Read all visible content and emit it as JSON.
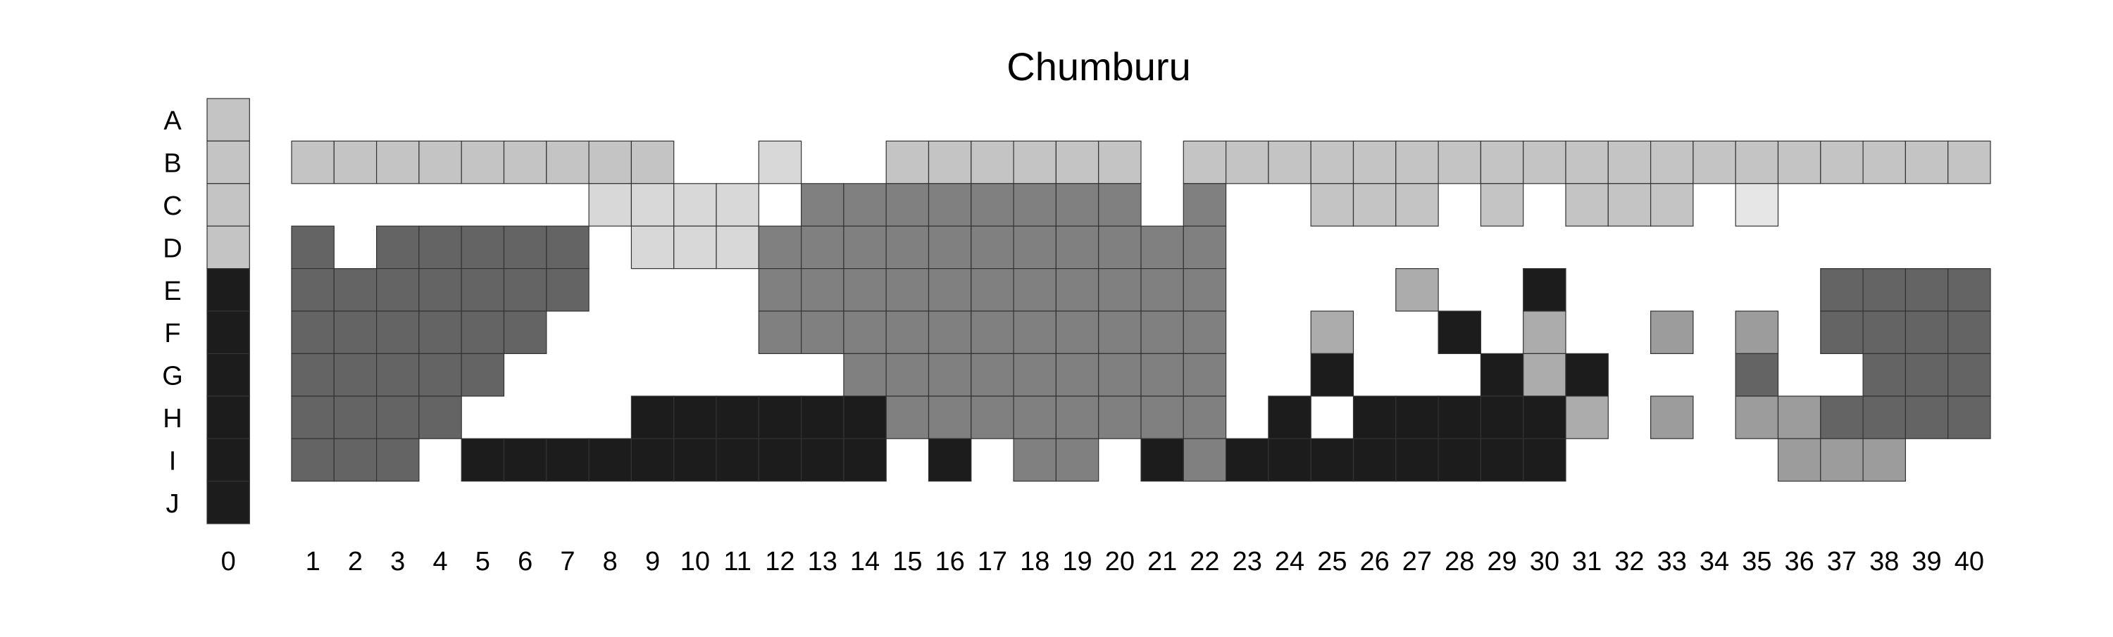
{
  "chart_data": {
    "type": "heatmap",
    "title": "Chumburu",
    "xlabel": "",
    "ylabel": "",
    "row_labels": [
      "A",
      "B",
      "C",
      "D",
      "E",
      "F",
      "G",
      "H",
      "I",
      "J"
    ],
    "column_labels": [
      "0",
      "1",
      "2",
      "3",
      "4",
      "5",
      "6",
      "7",
      "8",
      "9",
      "10",
      "11",
      "12",
      "13",
      "14",
      "15",
      "16",
      "17",
      "18",
      "19",
      "20",
      "21",
      "22",
      "23",
      "24",
      "25",
      "26",
      "27",
      "28",
      "29",
      "30",
      "31",
      "32",
      "33",
      "34",
      "35",
      "36",
      "37",
      "38",
      "39",
      "40"
    ],
    "legend": "none",
    "grid": false,
    "palette": {
      "0": "#c4c4c4",
      "1": "#d8d8d8",
      "2": "#e6e6e6",
      "3": "#acacac",
      "4": "#9c9c9c",
      "5": "#808080",
      "6": "#646464",
      "7": "#1c1c1c"
    },
    "cells": [
      {
        "row": "A",
        "cols": [
          0
        ],
        "shade": 0
      },
      {
        "row": "B",
        "cols": [
          0,
          1,
          2,
          3,
          4,
          5,
          6,
          7,
          8,
          9
        ],
        "shade": 0
      },
      {
        "row": "B",
        "cols": [
          12
        ],
        "shade": 1
      },
      {
        "row": "B",
        "cols": [
          15,
          16,
          17,
          18,
          19,
          20
        ],
        "shade": 0
      },
      {
        "row": "B",
        "cols": [
          22,
          23,
          24,
          25,
          26,
          27,
          28,
          29,
          30,
          31,
          32,
          33,
          34,
          35,
          36,
          37,
          38,
          39,
          40
        ],
        "shade": 0
      },
      {
        "row": "C",
        "cols": [
          0
        ],
        "shade": 0
      },
      {
        "row": "C",
        "cols": [
          8,
          9,
          10,
          11
        ],
        "shade": 1
      },
      {
        "row": "C",
        "cols": [
          13,
          14,
          15,
          16,
          17,
          18,
          19,
          20,
          22
        ],
        "shade": 5
      },
      {
        "row": "C",
        "cols": [
          25,
          26,
          27,
          29,
          31,
          32,
          33
        ],
        "shade": 0
      },
      {
        "row": "C",
        "cols": [
          35
        ],
        "shade": 2
      },
      {
        "row": "D",
        "cols": [
          0
        ],
        "shade": 0
      },
      {
        "row": "D",
        "cols": [
          1,
          3,
          4,
          5,
          6,
          7
        ],
        "shade": 6
      },
      {
        "row": "D",
        "cols": [
          9,
          10,
          11
        ],
        "shade": 1
      },
      {
        "row": "D",
        "cols": [
          12,
          13,
          14,
          15,
          16,
          17,
          18,
          19,
          20,
          21,
          22
        ],
        "shade": 5
      },
      {
        "row": "E",
        "cols": [
          0
        ],
        "shade": 7
      },
      {
        "row": "E",
        "cols": [
          1,
          2,
          3,
          4,
          5,
          6,
          7
        ],
        "shade": 6
      },
      {
        "row": "E",
        "cols": [
          12,
          13,
          14,
          15,
          16,
          17,
          18,
          19,
          20,
          21,
          22
        ],
        "shade": 5
      },
      {
        "row": "E",
        "cols": [
          27
        ],
        "shade": 3
      },
      {
        "row": "E",
        "cols": [
          30
        ],
        "shade": 7
      },
      {
        "row": "E",
        "cols": [
          37,
          38,
          39,
          40
        ],
        "shade": 6
      },
      {
        "row": "F",
        "cols": [
          0
        ],
        "shade": 7
      },
      {
        "row": "F",
        "cols": [
          1,
          2,
          3,
          4,
          5,
          6
        ],
        "shade": 6
      },
      {
        "row": "F",
        "cols": [
          12,
          13,
          14,
          15,
          16,
          17,
          18,
          19,
          20,
          21,
          22
        ],
        "shade": 5
      },
      {
        "row": "F",
        "cols": [
          25
        ],
        "shade": 3
      },
      {
        "row": "F",
        "cols": [
          28
        ],
        "shade": 7
      },
      {
        "row": "F",
        "cols": [
          30
        ],
        "shade": 3
      },
      {
        "row": "F",
        "cols": [
          33,
          35
        ],
        "shade": 4
      },
      {
        "row": "F",
        "cols": [
          37,
          38,
          39,
          40
        ],
        "shade": 6
      },
      {
        "row": "G",
        "cols": [
          0
        ],
        "shade": 7
      },
      {
        "row": "G",
        "cols": [
          1,
          2,
          3,
          4,
          5
        ],
        "shade": 6
      },
      {
        "row": "G",
        "cols": [
          14,
          15,
          16,
          17,
          18,
          19,
          20,
          21,
          22
        ],
        "shade": 5
      },
      {
        "row": "G",
        "cols": [
          25,
          29
        ],
        "shade": 7
      },
      {
        "row": "G",
        "cols": [
          30
        ],
        "shade": 3
      },
      {
        "row": "G",
        "cols": [
          31
        ],
        "shade": 7
      },
      {
        "row": "G",
        "cols": [
          35,
          38,
          39,
          40
        ],
        "shade": 6
      },
      {
        "row": "H",
        "cols": [
          0
        ],
        "shade": 7
      },
      {
        "row": "H",
        "cols": [
          1,
          2,
          3,
          4
        ],
        "shade": 6
      },
      {
        "row": "H",
        "cols": [
          9,
          10,
          11,
          12,
          13,
          14
        ],
        "shade": 7
      },
      {
        "row": "H",
        "cols": [
          15,
          16,
          17,
          18,
          19,
          20,
          21,
          22
        ],
        "shade": 5
      },
      {
        "row": "H",
        "cols": [
          24,
          26,
          27,
          28,
          29,
          30
        ],
        "shade": 7
      },
      {
        "row": "H",
        "cols": [
          31
        ],
        "shade": 3
      },
      {
        "row": "H",
        "cols": [
          33,
          35,
          36
        ],
        "shade": 4
      },
      {
        "row": "H",
        "cols": [
          37,
          38,
          39,
          40
        ],
        "shade": 6
      },
      {
        "row": "I",
        "cols": [
          0
        ],
        "shade": 7
      },
      {
        "row": "I",
        "cols": [
          1,
          2,
          3
        ],
        "shade": 6
      },
      {
        "row": "I",
        "cols": [
          5,
          6,
          7,
          8,
          9,
          10,
          11,
          12,
          13,
          14,
          16
        ],
        "shade": 7
      },
      {
        "row": "I",
        "cols": [
          18,
          19
        ],
        "shade": 5
      },
      {
        "row": "I",
        "cols": [
          21
        ],
        "shade": 7
      },
      {
        "row": "I",
        "cols": [
          22
        ],
        "shade": 5
      },
      {
        "row": "I",
        "cols": [
          23,
          24,
          25,
          26,
          27,
          28,
          29,
          30
        ],
        "shade": 7
      },
      {
        "row": "I",
        "cols": [
          36,
          37,
          38
        ],
        "shade": 4
      },
      {
        "row": "J",
        "cols": [
          0
        ],
        "shade": 7
      }
    ]
  }
}
